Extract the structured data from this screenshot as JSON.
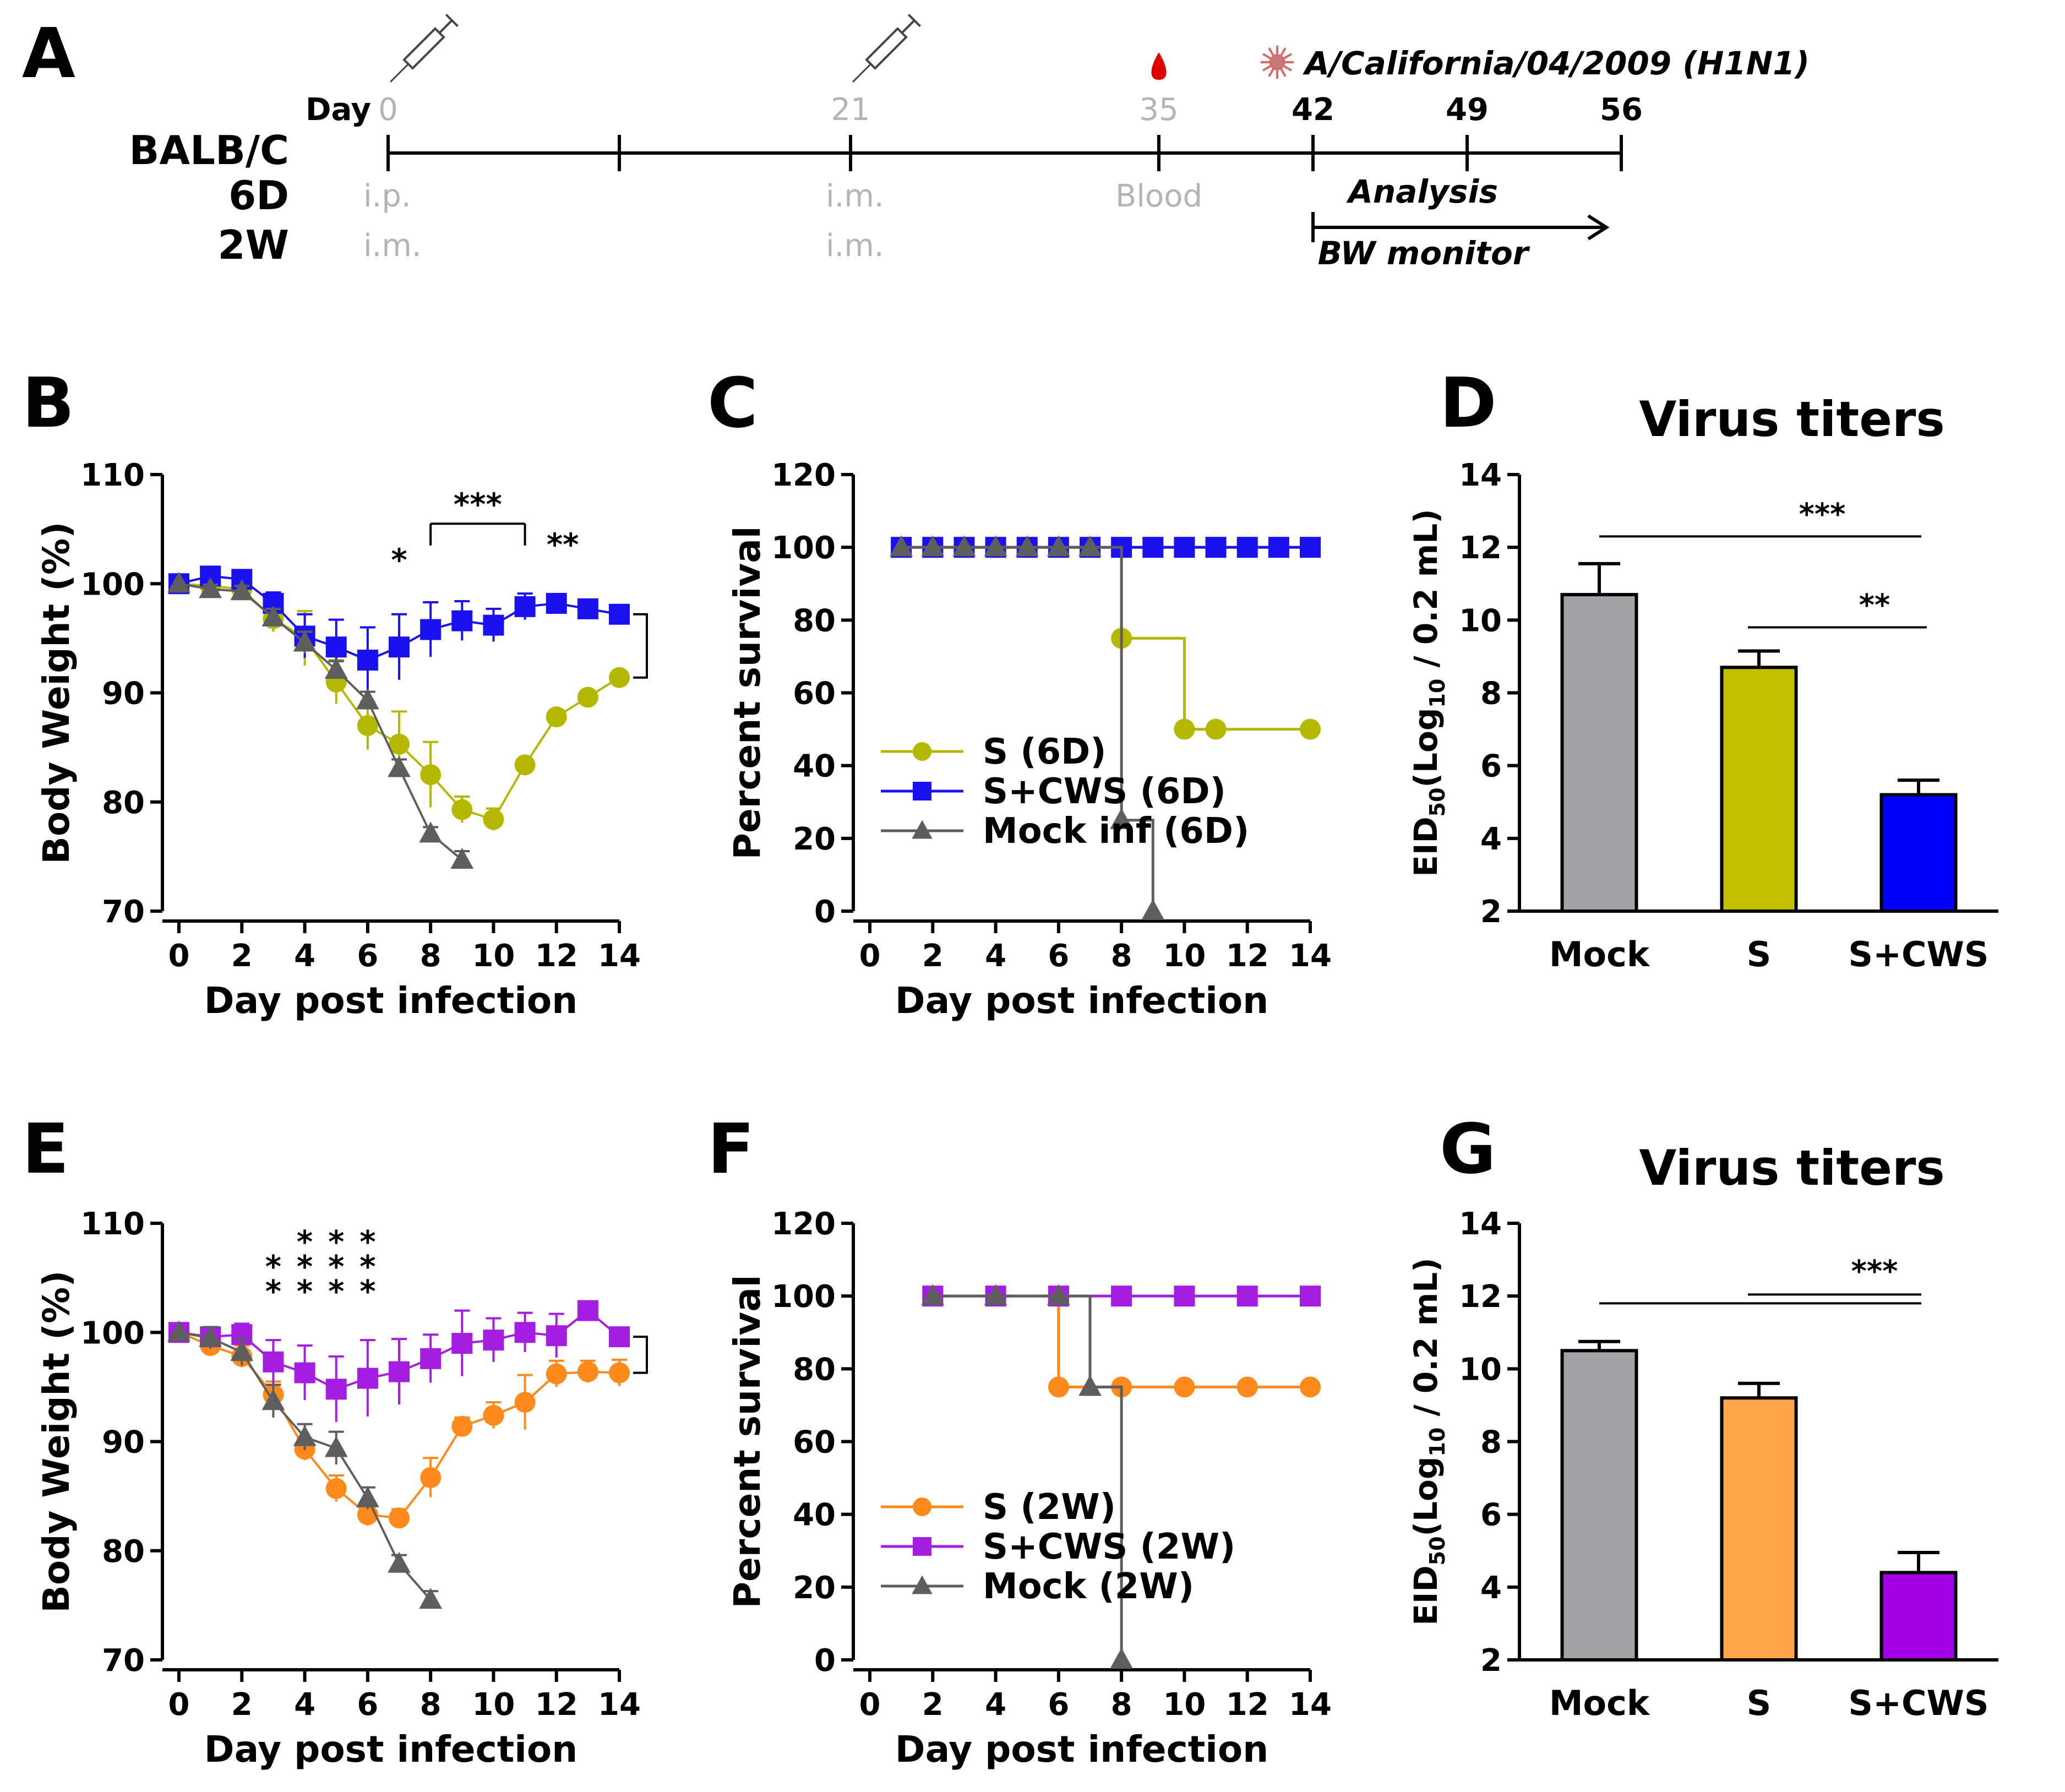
{
  "panel_labels": [
    "A",
    "B",
    "C",
    "D",
    "E",
    "F",
    "G"
  ],
  "timeline": {
    "day_prefix": "Day",
    "ticks": [
      {
        "day": 0,
        "label": "0",
        "bold": false
      },
      {
        "day": 10.5,
        "label": "",
        "bold": false
      },
      {
        "day": 21,
        "label": "21",
        "bold": false
      },
      {
        "day": 35,
        "label": "35",
        "bold": false
      },
      {
        "day": 42,
        "label": "42",
        "bold": true
      },
      {
        "day": 49,
        "label": "49",
        "bold": true
      },
      {
        "day": 56,
        "label": "56",
        "bold": true
      }
    ],
    "strain_label": "BALB/C",
    "groups": [
      {
        "name": "6D",
        "route_day0": "i.p.",
        "route_day21": "i.m."
      },
      {
        "name": "2W",
        "route_day0": "i.m.",
        "route_day21": "i.m."
      }
    ],
    "blood_label": "Blood",
    "virus_label": "A/California/04/2009 (H1N1)",
    "analysis_label": "Analysis",
    "bw_label": "BW monitor",
    "colors": {
      "muted": "#b4b4b4",
      "blood": "#e00000",
      "virus": "#d46a6a"
    }
  },
  "chart_data": [
    {
      "panel": "B",
      "type": "line",
      "xlabel": "Day post infection",
      "ylabel": "Body Weight (%)",
      "xlim": [
        0,
        14
      ],
      "ylim": [
        70,
        110
      ],
      "xticks": [
        0,
        2,
        4,
        6,
        8,
        10,
        12,
        14
      ],
      "yticks": [
        70,
        80,
        90,
        100,
        110
      ],
      "series": [
        {
          "name": "S (6D)",
          "color": "#b5b800",
          "marker": "circle",
          "x": [
            0,
            1,
            2,
            3,
            4,
            5,
            6,
            7,
            8,
            9,
            10,
            11,
            12,
            13,
            14
          ],
          "y": [
            100,
            99.8,
            99.5,
            96.8,
            95,
            91,
            87,
            85.3,
            82.5,
            79.3,
            78.4,
            83.4,
            87.8,
            89.6,
            91.4
          ],
          "err": [
            0,
            0.5,
            0.8,
            1.2,
            2.5,
            2,
            2.2,
            3,
            3,
            1.2,
            1,
            0.5,
            0.5,
            0.4,
            0.4
          ]
        },
        {
          "name": "S+CWS (6D)",
          "color": "#1a12ee",
          "marker": "square",
          "x": [
            0,
            1,
            2,
            3,
            4,
            5,
            6,
            7,
            8,
            9,
            10,
            11,
            12,
            13,
            14
          ],
          "y": [
            100,
            100.7,
            100.4,
            98.2,
            95.2,
            94.2,
            93,
            94.2,
            95.8,
            96.6,
            96.2,
            97.9,
            98.2,
            97.7,
            97.2
          ],
          "err": [
            0,
            0.4,
            0.6,
            1,
            2,
            2.5,
            3,
            3,
            2.5,
            1.8,
            1.5,
            1.2,
            0.8,
            0.5,
            0.6
          ]
        },
        {
          "name": "Mock inf (6D)",
          "color": "#5e5e5e",
          "marker": "triangle",
          "x": [
            0,
            1,
            2,
            3,
            4,
            5,
            6,
            7,
            8,
            9
          ],
          "y": [
            100,
            99.5,
            99.3,
            96.9,
            94.6,
            92.1,
            89.3,
            83.1,
            77.1,
            74.7
          ],
          "err": [
            0,
            0.4,
            0.5,
            0.8,
            1,
            0.8,
            0.8,
            0.8,
            0.6,
            0.8
          ]
        }
      ],
      "annotations": {
        "star_single": "*",
        "star_bracket": "***",
        "star_double": "**",
        "bracket_days": [
          8,
          11
        ]
      }
    },
    {
      "panel": "C",
      "type": "line",
      "xlabel": "Day post infection",
      "ylabel": "Percent survival",
      "xlim": [
        0,
        14
      ],
      "ylim": [
        0,
        120
      ],
      "xticks": [
        0,
        2,
        4,
        6,
        8,
        10,
        12,
        14
      ],
      "yticks": [
        0,
        20,
        40,
        60,
        80,
        100,
        120
      ],
      "series": [
        {
          "name": "S (6D)",
          "color": "#b5b800",
          "marker": "circle",
          "steps": [
            [
              1,
              100
            ],
            [
              8,
              100
            ],
            [
              8,
              75
            ],
            [
              10,
              75
            ],
            [
              10,
              50
            ],
            [
              14,
              50
            ]
          ],
          "markers": [
            [
              1,
              100
            ],
            [
              2,
              100
            ],
            [
              3,
              100
            ],
            [
              4,
              100
            ],
            [
              5,
              100
            ],
            [
              6,
              100
            ],
            [
              7,
              100
            ],
            [
              8,
              75
            ],
            [
              10,
              50
            ],
            [
              11,
              50
            ],
            [
              14,
              50
            ]
          ]
        },
        {
          "name": "S+CWS (6D)",
          "color": "#1a12ee",
          "marker": "square",
          "steps": [
            [
              1,
              100
            ],
            [
              14,
              100
            ]
          ],
          "markers": [
            [
              1,
              100
            ],
            [
              2,
              100
            ],
            [
              3,
              100
            ],
            [
              4,
              100
            ],
            [
              5,
              100
            ],
            [
              6,
              100
            ],
            [
              7,
              100
            ],
            [
              8,
              100
            ],
            [
              9,
              100
            ],
            [
              10,
              100
            ],
            [
              11,
              100
            ],
            [
              12,
              100
            ],
            [
              13,
              100
            ],
            [
              14,
              100
            ]
          ]
        },
        {
          "name": "Mock inf (6D)",
          "color": "#5e5e5e",
          "marker": "triangle",
          "steps": [
            [
              1,
              100
            ],
            [
              8,
              100
            ],
            [
              8,
              25
            ],
            [
              9,
              25
            ],
            [
              9,
              0
            ]
          ],
          "markers": [
            [
              1,
              100
            ],
            [
              2,
              100
            ],
            [
              3,
              100
            ],
            [
              4,
              100
            ],
            [
              5,
              100
            ],
            [
              6,
              100
            ],
            [
              7,
              100
            ],
            [
              8,
              25
            ],
            [
              9,
              0
            ]
          ]
        }
      ]
    },
    {
      "panel": "D",
      "type": "bar",
      "title": "Virus titers",
      "ylabel": "EID50(Log10 / 0.2 mL)",
      "ylim": [
        2,
        14
      ],
      "yticks": [
        2,
        4,
        6,
        8,
        10,
        12,
        14
      ],
      "categories": [
        "Mock",
        "S",
        "S+CWS"
      ],
      "values": [
        10.7,
        8.7,
        5.2
      ],
      "err": [
        0.85,
        0.45,
        0.4
      ],
      "colors": [
        "#a3a3a7",
        "#c4c000",
        "#0000ff"
      ],
      "significance": [
        {
          "from": 0,
          "to": 2,
          "label": "***"
        },
        {
          "from": 1,
          "to": 2,
          "label": "**"
        }
      ]
    },
    {
      "panel": "E",
      "type": "line",
      "xlabel": "Day post infection",
      "ylabel": "Body Weight (%)",
      "xlim": [
        0,
        14
      ],
      "ylim": [
        70,
        110
      ],
      "xticks": [
        0,
        2,
        4,
        6,
        8,
        10,
        12,
        14
      ],
      "yticks": [
        70,
        80,
        90,
        100,
        110
      ],
      "series": [
        {
          "name": "S (2W)",
          "color": "#ff8a1c",
          "marker": "circle",
          "x": [
            0,
            1,
            2,
            3,
            4,
            5,
            6,
            7,
            8,
            9,
            10,
            11,
            12,
            13,
            14
          ],
          "y": [
            100,
            98.8,
            97.8,
            94.3,
            89.3,
            85.7,
            83.3,
            83,
            86.7,
            91.4,
            92.4,
            93.6,
            96.2,
            96.4,
            96.3
          ],
          "err": [
            0,
            0.8,
            1,
            1.2,
            1,
            1.2,
            1,
            0.8,
            1.8,
            0.8,
            1.2,
            2.5,
            1.2,
            1,
            1.2
          ]
        },
        {
          "name": "S+CWS (2W)",
          "color": "#a31ee0",
          "marker": "square",
          "x": [
            0,
            1,
            2,
            3,
            4,
            5,
            6,
            7,
            8,
            9,
            10,
            11,
            12,
            13,
            14
          ],
          "y": [
            100,
            99.6,
            99.8,
            97.3,
            96.3,
            94.8,
            95.8,
            96.4,
            97.6,
            99,
            99.3,
            100,
            99.7,
            102,
            99.6
          ],
          "err": [
            0,
            0.6,
            1,
            2,
            2.5,
            3,
            3.5,
            3,
            2.2,
            3,
            2,
            1.8,
            2,
            0.8,
            0.8
          ]
        },
        {
          "name": "Mock (2W)",
          "color": "#5e5e5e",
          "marker": "triangle",
          "x": [
            0,
            1,
            2,
            3,
            4,
            5,
            6,
            7,
            8
          ],
          "y": [
            100,
            99.5,
            98.2,
            93.7,
            90.4,
            89.4,
            84.8,
            78.8,
            75.5
          ],
          "err": [
            0,
            1,
            1.2,
            1.5,
            1.2,
            1.5,
            1,
            0.8,
            0.8
          ]
        }
      ],
      "annotations": {
        "star_columns": [
          "**",
          "***",
          "***",
          "***"
        ],
        "star_days": [
          3,
          4,
          5,
          6
        ]
      }
    },
    {
      "panel": "F",
      "type": "line",
      "xlabel": "Day post infection",
      "ylabel": "Percent survival",
      "xlim": [
        0,
        14
      ],
      "ylim": [
        0,
        120
      ],
      "xticks": [
        0,
        2,
        4,
        6,
        8,
        10,
        12,
        14
      ],
      "yticks": [
        0,
        20,
        40,
        60,
        80,
        100,
        120
      ],
      "series": [
        {
          "name": "S (2W)",
          "color": "#ff8a1c",
          "marker": "circle",
          "steps": [
            [
              2,
              100
            ],
            [
              6,
              100
            ],
            [
              6,
              75
            ],
            [
              14,
              75
            ]
          ],
          "markers": [
            [
              2,
              100
            ],
            [
              4,
              100
            ],
            [
              6,
              75
            ],
            [
              8,
              75
            ],
            [
              10,
              75
            ],
            [
              12,
              75
            ],
            [
              14,
              75
            ]
          ]
        },
        {
          "name": "S+CWS (2W)",
          "color": "#a31ee0",
          "marker": "square",
          "steps": [
            [
              2,
              100
            ],
            [
              14,
              100
            ]
          ],
          "markers": [
            [
              2,
              100
            ],
            [
              4,
              100
            ],
            [
              6,
              100
            ],
            [
              8,
              100
            ],
            [
              10,
              100
            ],
            [
              12,
              100
            ],
            [
              14,
              100
            ]
          ]
        },
        {
          "name": "Mock (2W)",
          "color": "#5e5e5e",
          "marker": "triangle",
          "steps": [
            [
              2,
              100
            ],
            [
              7,
              100
            ],
            [
              7,
              75
            ],
            [
              8,
              75
            ],
            [
              8,
              0
            ]
          ],
          "markers": [
            [
              2,
              100
            ],
            [
              4,
              100
            ],
            [
              6,
              100
            ],
            [
              7,
              75
            ],
            [
              8,
              0
            ]
          ]
        }
      ]
    },
    {
      "panel": "G",
      "type": "bar",
      "title": "Virus titers",
      "ylabel": "EID50(Log10 / 0.2 mL)",
      "ylim": [
        2,
        14
      ],
      "yticks": [
        2,
        4,
        6,
        8,
        10,
        12,
        14
      ],
      "categories": [
        "Mock",
        "S",
        "S+CWS"
      ],
      "values": [
        10.5,
        9.2,
        4.4
      ],
      "err": [
        0.25,
        0.4,
        0.55
      ],
      "colors": [
        "#a3a3a7",
        "#ffa54a",
        "#a100e6"
      ],
      "significance": [
        {
          "from": 0,
          "to": 2,
          "label": "***"
        },
        {
          "from": 1,
          "to": 2,
          "label": ""
        }
      ]
    }
  ]
}
